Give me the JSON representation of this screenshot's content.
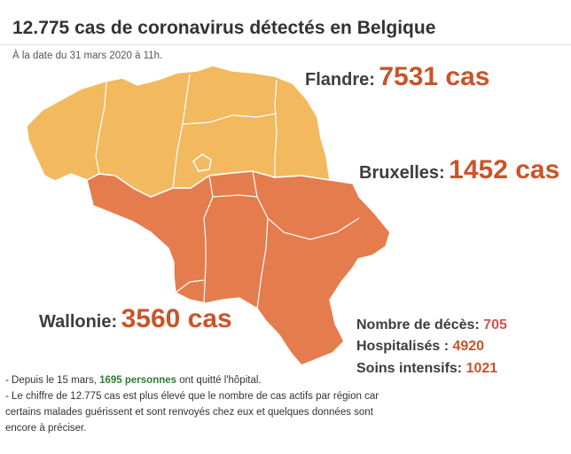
{
  "title": "12.775 cas de coronavirus détectés en Belgique",
  "subtitle": "À la date du 31 mars 2020 à 11h.",
  "colors": {
    "flanders": "#F2B95E",
    "wallonia": "#E57C4D",
    "brussels": "#F2B95E",
    "value_text": "#C9542A",
    "hospital_highlight": "#2E7D32"
  },
  "regions": {
    "flanders": {
      "name": "Flandre:",
      "cases": "7531 cas"
    },
    "brussels": {
      "name": "Bruxelles:",
      "cases": "1452 cas"
    },
    "wallonia": {
      "name": "Wallonie:",
      "cases": "3560 cas"
    }
  },
  "stats": {
    "deaths_label": "Nombre de décès:",
    "deaths_value": "705",
    "hospitalized_label": "Hospitalisés :",
    "hospitalized_value": "4920",
    "icu_label": "Soins intensifs:",
    "icu_value": "1021"
  },
  "notes": {
    "line1_prefix": "- Depuis le 15 mars,",
    "line1_highlight": "1695 personnes",
    "line1_suffix": "ont quitté l'hôpital.",
    "line2": "- Le chiffre de 12.775 cas est plus élevé que le nombre de cas actifs par région car certains malades guérissent et sont renvoyés chez eux et quelques données sont encore à préciser."
  }
}
